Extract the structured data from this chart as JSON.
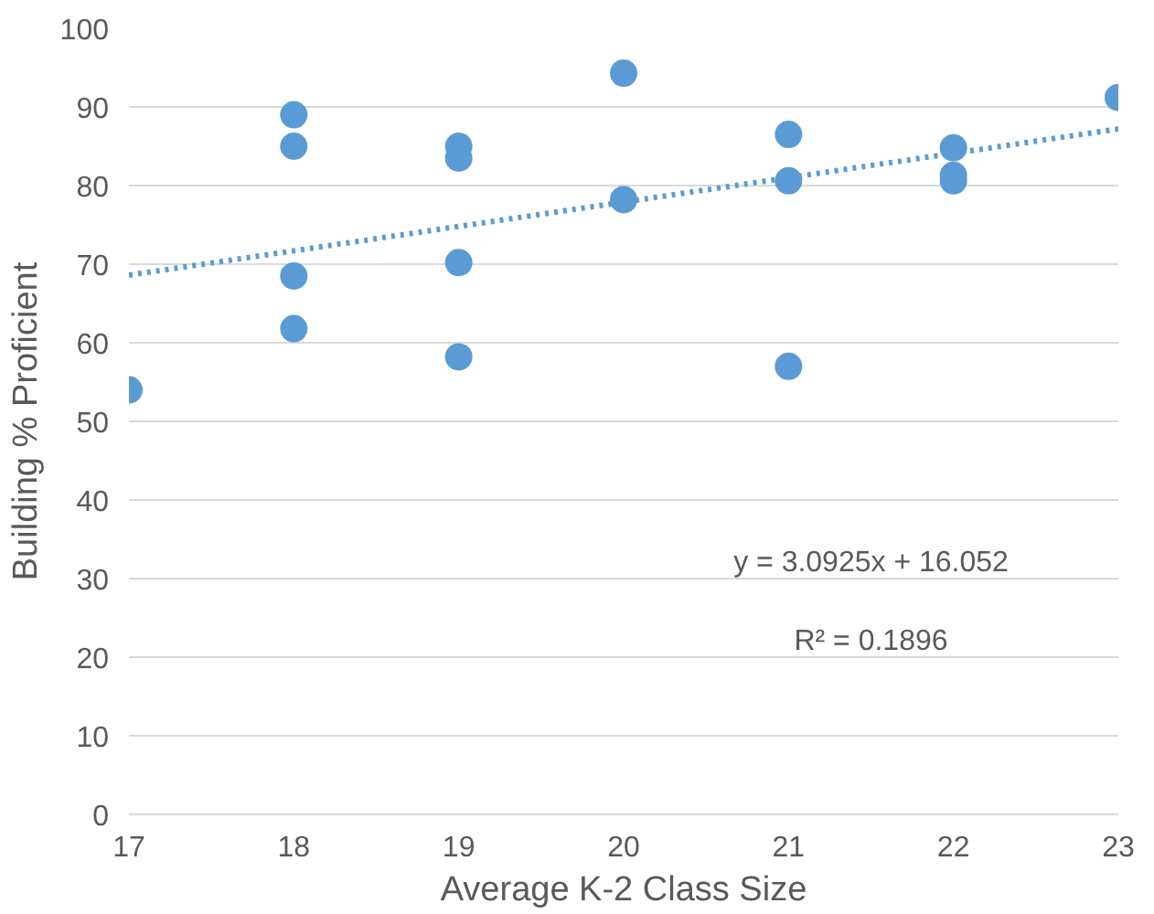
{
  "chart_data": {
    "type": "scatter",
    "xlabel": "Average K-2 Class Size",
    "ylabel": "Building % Proficient",
    "xlim": [
      17,
      23
    ],
    "xticks": [
      17,
      18,
      19,
      20,
      21,
      22,
      23
    ],
    "ylim": [
      0,
      100
    ],
    "yticks": [
      0,
      10,
      20,
      30,
      40,
      50,
      60,
      70,
      80,
      90,
      100
    ],
    "grid": "y",
    "series": [
      {
        "marker": "circle",
        "color": "#5b9bd5",
        "x": [
          17,
          18,
          18,
          18,
          18,
          19,
          19,
          19,
          19,
          20,
          20,
          21,
          21,
          21,
          22,
          22,
          22,
          23
        ],
        "values": [
          54,
          89,
          85,
          68.5,
          61.8,
          85,
          83.5,
          70.2,
          58.2,
          94.3,
          78.2,
          86.5,
          80.6,
          57,
          84.8,
          81.3,
          80.6,
          91.2
        ]
      },
      {
        "type": "line",
        "color": "#5b9bd5",
        "line_style": "dotted",
        "x": [
          17,
          23
        ],
        "values": [
          68.6,
          87.2
        ]
      }
    ],
    "annotations": [
      "y = 3.0925x + 16.052",
      "R² = 0.1896"
    ]
  }
}
